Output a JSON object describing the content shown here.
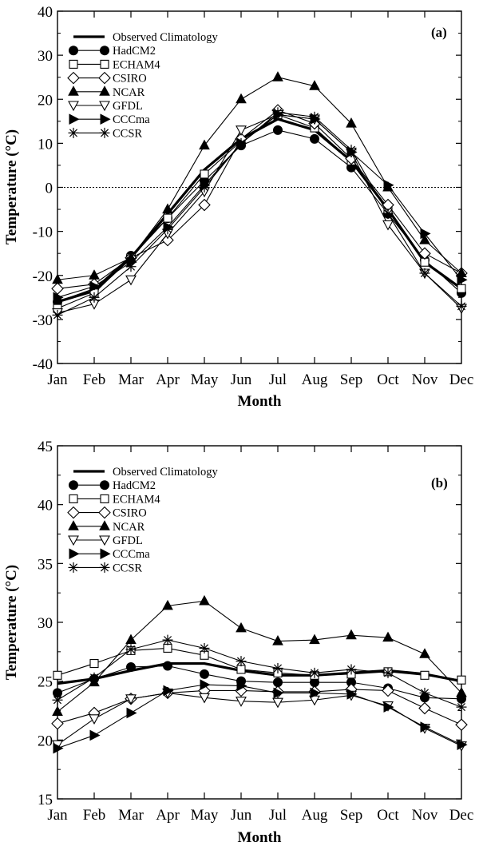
{
  "chart_data": [
    {
      "type": "line",
      "panel_label": "(a)",
      "title": "",
      "xlabel": "Month",
      "ylabel": "Temperature (°C)",
      "categories": [
        "Jan",
        "Feb",
        "Mar",
        "Apr",
        "May",
        "Jun",
        "Jul",
        "Aug",
        "Sep",
        "Oct",
        "Nov",
        "Dec"
      ],
      "ylim": [
        -40,
        40
      ],
      "yticks": [
        -40,
        -30,
        -20,
        -10,
        0,
        10,
        20,
        30,
        40
      ],
      "reference_line": 0,
      "legend_position": "top-left",
      "series": [
        {
          "name": "Observed Climatology",
          "marker": "none",
          "values": [
            -26,
            -23.5,
            -16,
            -6,
            4,
            11,
            15.5,
            13,
            6,
            -5,
            -17,
            -23
          ]
        },
        {
          "name": "HadCM2",
          "marker": "filled-circle",
          "values": [
            -26,
            -23,
            -15.5,
            -7,
            1.5,
            9.5,
            13,
            11,
            4.5,
            -6,
            -16.5,
            -24
          ]
        },
        {
          "name": "ECHAM4",
          "marker": "open-square",
          "values": [
            -27.5,
            -24,
            -16,
            -7,
            3,
            10.5,
            16.5,
            13.5,
            6,
            -5,
            -17,
            -23
          ]
        },
        {
          "name": "CSIRO",
          "marker": "open-diamond",
          "values": [
            -23,
            -22,
            -16,
            -12,
            -4,
            11,
            17.5,
            14.5,
            6.5,
            -4,
            -15,
            -19.5
          ]
        },
        {
          "name": "NCAR",
          "marker": "filled-triangle-up",
          "values": [
            -21,
            -20,
            -16,
            -5,
            9.5,
            20,
            25,
            23,
            14.5,
            0,
            -12,
            -19.5
          ]
        },
        {
          "name": "GFDL",
          "marker": "open-triangle-down",
          "values": [
            -28.5,
            -26.5,
            -21,
            -10.5,
            -1,
            13,
            16.5,
            15.5,
            8,
            -8.5,
            -19.5,
            -27.5
          ]
        },
        {
          "name": "CCCma",
          "marker": "filled-triangle-right",
          "values": [
            -25,
            -22.5,
            -17,
            -9,
            0.5,
            10,
            16.5,
            15.5,
            8,
            0.5,
            -10.5,
            -21
          ]
        },
        {
          "name": "CCSR",
          "marker": "asterisk",
          "values": [
            -29,
            -25,
            -18,
            -9.5,
            0,
            10,
            17,
            16,
            8.5,
            -6,
            -19.5,
            -27
          ]
        }
      ]
    },
    {
      "type": "line",
      "panel_label": "(b)",
      "title": "",
      "xlabel": "Month",
      "ylabel": "Temperature (°C)",
      "categories": [
        "Jan",
        "Feb",
        "Mar",
        "Apr",
        "May",
        "Jun",
        "Jul",
        "Aug",
        "Sep",
        "Oct",
        "Nov",
        "Dec"
      ],
      "ylim": [
        15,
        45
      ],
      "yticks": [
        15,
        20,
        25,
        30,
        35,
        40,
        45
      ],
      "legend_position": "top-left",
      "series": [
        {
          "name": "Observed Climatology",
          "marker": "none",
          "values": [
            24.8,
            25.2,
            25.9,
            26.5,
            26.5,
            25.9,
            25.5,
            25.5,
            25.7,
            25.9,
            25.6,
            25.0
          ]
        },
        {
          "name": "HadCM2",
          "marker": "filled-circle",
          "values": [
            24.0,
            25.2,
            26.2,
            26.3,
            25.6,
            25.0,
            24.9,
            24.9,
            24.9,
            24.4,
            23.6,
            23.5
          ]
        },
        {
          "name": "ECHAM4",
          "marker": "open-square",
          "values": [
            25.5,
            26.5,
            27.6,
            27.8,
            27.2,
            26.0,
            25.7,
            25.5,
            25.6,
            25.8,
            25.5,
            25.1
          ]
        },
        {
          "name": "CSIRO",
          "marker": "open-diamond",
          "values": [
            21.4,
            22.3,
            23.5,
            24.0,
            24.2,
            24.2,
            24.1,
            24.1,
            24.3,
            24.2,
            22.7,
            21.3
          ]
        },
        {
          "name": "NCAR",
          "marker": "filled-triangle-up",
          "values": [
            22.4,
            24.9,
            28.5,
            31.4,
            31.8,
            29.5,
            28.4,
            28.5,
            28.9,
            28.7,
            27.3,
            24.0
          ]
        },
        {
          "name": "GFDL",
          "marker": "open-triangle-down",
          "values": [
            19.6,
            21.8,
            23.5,
            24.0,
            23.6,
            23.3,
            23.2,
            23.4,
            23.8,
            22.9,
            21.0,
            19.5
          ]
        },
        {
          "name": "CCCma",
          "marker": "filled-triangle-right",
          "values": [
            19.3,
            20.4,
            22.3,
            24.2,
            24.7,
            24.6,
            24.0,
            24.0,
            23.9,
            22.8,
            21.1,
            19.6
          ]
        },
        {
          "name": "CCSR",
          "marker": "asterisk",
          "values": [
            23.4,
            25.3,
            27.7,
            28.5,
            27.8,
            26.7,
            26.1,
            25.7,
            26.0,
            25.7,
            24.0,
            22.8
          ]
        }
      ]
    }
  ]
}
